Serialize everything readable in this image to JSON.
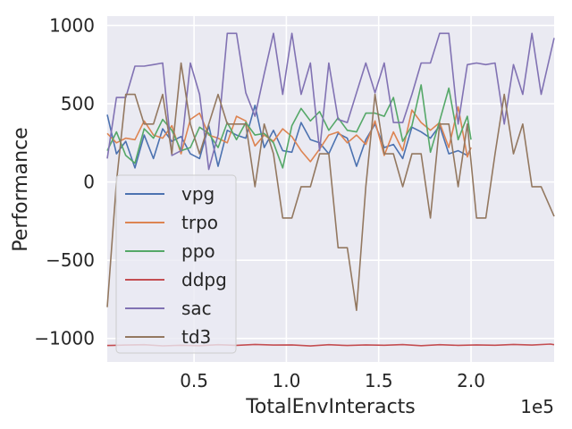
{
  "chart_data": {
    "type": "line",
    "xlabel": "TotalEnvInteracts",
    "ylabel": "Performance",
    "x_offset_text": "1e5",
    "x_unit": 100000,
    "xlim": [
      3000,
      245000
    ],
    "ylim": [
      -1150,
      1060
    ],
    "x_ticks": [
      50000,
      100000,
      150000,
      200000
    ],
    "x_tick_labels": [
      "0.5",
      "1.0",
      "1.5",
      "2.0"
    ],
    "y_ticks": [
      -1000,
      -500,
      0,
      500,
      1000
    ],
    "y_tick_labels": [
      "−1000",
      "−500",
      "0",
      "500",
      "1000"
    ],
    "grid": true,
    "legend_position": "lower left",
    "series": [
      {
        "name": "vpg",
        "color": "#4c72b0",
        "x": [
          3000,
          8000,
          13000,
          18000,
          23000,
          28000,
          33000,
          38000,
          43000,
          48000,
          53000,
          58000,
          63000,
          68000,
          73000,
          78000,
          83000,
          88000,
          93000,
          98000,
          103000,
          108000,
          113000,
          118000,
          123000,
          128000,
          133000,
          138000,
          143000,
          148000,
          153000,
          158000,
          163000,
          168000,
          173000,
          178000,
          183000,
          188000,
          193000,
          198000,
          200000
        ],
        "y": [
          430,
          180,
          260,
          90,
          300,
          150,
          340,
          260,
          290,
          180,
          150,
          360,
          100,
          330,
          300,
          280,
          490,
          220,
          330,
          200,
          190,
          380,
          270,
          250,
          180,
          310,
          280,
          100,
          270,
          370,
          220,
          240,
          150,
          350,
          320,
          280,
          360,
          180,
          200,
          170,
          220
        ]
      },
      {
        "name": "trpo",
        "color": "#dd8452",
        "x": [
          3000,
          8000,
          13000,
          18000,
          23000,
          28000,
          33000,
          38000,
          43000,
          48000,
          53000,
          58000,
          63000,
          68000,
          73000,
          78000,
          83000,
          88000,
          93000,
          98000,
          103000,
          108000,
          113000,
          118000,
          123000,
          128000,
          133000,
          138000,
          143000,
          148000,
          153000,
          158000,
          163000,
          168000,
          173000,
          178000,
          183000,
          188000,
          193000,
          198000,
          200000
        ],
        "y": [
          310,
          250,
          280,
          270,
          390,
          300,
          280,
          360,
          180,
          400,
          440,
          300,
          280,
          250,
          420,
          390,
          230,
          300,
          260,
          340,
          290,
          200,
          130,
          210,
          300,
          320,
          250,
          300,
          240,
          390,
          170,
          320,
          200,
          460,
          380,
          330,
          380,
          220,
          480,
          160,
          220
        ]
      },
      {
        "name": "ppo",
        "color": "#55a868",
        "x": [
          3000,
          8000,
          13000,
          18000,
          23000,
          28000,
          33000,
          38000,
          43000,
          48000,
          53000,
          58000,
          63000,
          68000,
          73000,
          78000,
          83000,
          88000,
          93000,
          98000,
          103000,
          108000,
          113000,
          118000,
          123000,
          128000,
          133000,
          138000,
          143000,
          148000,
          153000,
          158000,
          163000,
          168000,
          173000,
          178000,
          183000,
          188000,
          193000,
          198000,
          200000
        ],
        "y": [
          200,
          320,
          170,
          120,
          340,
          280,
          400,
          330,
          200,
          220,
          350,
          310,
          220,
          380,
          270,
          380,
          300,
          310,
          250,
          90,
          360,
          470,
          390,
          450,
          330,
          410,
          330,
          320,
          440,
          440,
          420,
          540,
          260,
          360,
          620,
          190,
          390,
          600,
          270,
          420,
          270
        ]
      },
      {
        "name": "ddpg",
        "color": "#c44e52",
        "x": [
          3000,
          13000,
          23000,
          33000,
          43000,
          53000,
          63000,
          73000,
          83000,
          93000,
          103000,
          113000,
          123000,
          133000,
          143000,
          153000,
          163000,
          173000,
          183000,
          193000,
          203000,
          213000,
          223000,
          233000,
          243000,
          245000
        ],
        "y": [
          -1045,
          -1042,
          -1040,
          -1047,
          -1043,
          -1046,
          -1040,
          -1044,
          -1038,
          -1042,
          -1041,
          -1048,
          -1040,
          -1045,
          -1041,
          -1043,
          -1039,
          -1046,
          -1040,
          -1044,
          -1041,
          -1043,
          -1038,
          -1042,
          -1036,
          -1040
        ]
      },
      {
        "name": "sac",
        "color": "#8172b3",
        "x": [
          3000,
          8000,
          13000,
          18000,
          23000,
          28000,
          33000,
          38000,
          43000,
          48000,
          53000,
          58000,
          63000,
          68000,
          73000,
          78000,
          83000,
          88000,
          93000,
          98000,
          103000,
          108000,
          113000,
          118000,
          123000,
          128000,
          133000,
          138000,
          143000,
          148000,
          153000,
          158000,
          163000,
          168000,
          173000,
          178000,
          183000,
          188000,
          193000,
          198000,
          203000,
          208000,
          213000,
          218000,
          223000,
          228000,
          233000,
          238000,
          245000
        ],
        "y": [
          150,
          540,
          540,
          740,
          740,
          750,
          760,
          170,
          200,
          760,
          560,
          80,
          300,
          950,
          950,
          570,
          420,
          690,
          950,
          560,
          950,
          560,
          760,
          200,
          760,
          400,
          380,
          570,
          760,
          570,
          760,
          380,
          380,
          560,
          760,
          760,
          950,
          950,
          370,
          750,
          760,
          750,
          760,
          370,
          750,
          560,
          950,
          560,
          920
        ]
      },
      {
        "name": "td3",
        "color": "#937860",
        "x": [
          3000,
          8000,
          13000,
          18000,
          23000,
          28000,
          33000,
          38000,
          43000,
          48000,
          53000,
          58000,
          63000,
          68000,
          73000,
          78000,
          83000,
          88000,
          93000,
          98000,
          103000,
          108000,
          113000,
          118000,
          123000,
          128000,
          133000,
          138000,
          143000,
          148000,
          153000,
          158000,
          163000,
          168000,
          173000,
          178000,
          183000,
          188000,
          193000,
          198000,
          203000,
          208000,
          213000,
          218000,
          223000,
          228000,
          233000,
          238000,
          245000
        ],
        "y": [
          -800,
          0,
          560,
          560,
          370,
          370,
          560,
          180,
          760,
          370,
          180,
          370,
          560,
          370,
          370,
          370,
          -30,
          370,
          180,
          -230,
          -230,
          -30,
          -30,
          180,
          180,
          -420,
          -420,
          -820,
          -30,
          560,
          180,
          180,
          -30,
          180,
          180,
          -230,
          370,
          370,
          -30,
          370,
          -230,
          -230,
          180,
          560,
          180,
          370,
          -30,
          -30,
          -220
        ]
      }
    ]
  }
}
